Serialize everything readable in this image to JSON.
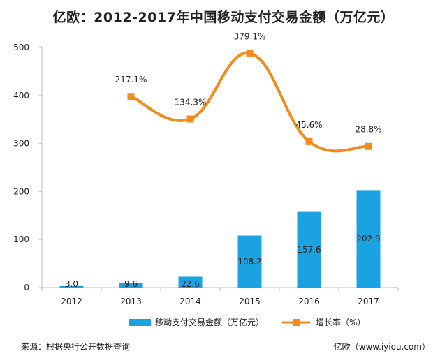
{
  "colors": {
    "bar": "#1aa3e0",
    "line": "#f28c1e",
    "axis": "#bdbdbd",
    "text": "#222222"
  },
  "chart_data": {
    "type": "bar",
    "title": "亿欧：2012-2017年中国移动支付交易金额（万亿元）",
    "categories": [
      "2012",
      "2013",
      "2014",
      "2015",
      "2016",
      "2017"
    ],
    "ylim": [
      0,
      500
    ],
    "yticks": [
      "0",
      "100",
      "200",
      "300",
      "400",
      "500"
    ],
    "series": [
      {
        "name": "移动支付交易金额（万亿元）",
        "type": "bar",
        "values": [
          3.0,
          9.6,
          22.6,
          108.2,
          157.6,
          202.9
        ],
        "labels": [
          "3.0",
          "9.6",
          "22.6",
          "108.2",
          "157.6",
          "202.9"
        ]
      },
      {
        "name": "增长率（%）",
        "type": "line",
        "values": [
          null,
          217.1,
          134.3,
          379.1,
          45.6,
          28.8
        ],
        "plot_values": [
          null,
          398,
          351,
          488,
          304,
          294
        ],
        "labels": [
          "",
          "217.1%",
          "134.3%",
          "379.1%",
          "45.6%",
          "28.8%"
        ]
      }
    ],
    "legend": "bottom"
  },
  "footer": {
    "source": "来源：根据央行公开数据查询",
    "credit": "亿欧（www.iyiou.com）"
  }
}
